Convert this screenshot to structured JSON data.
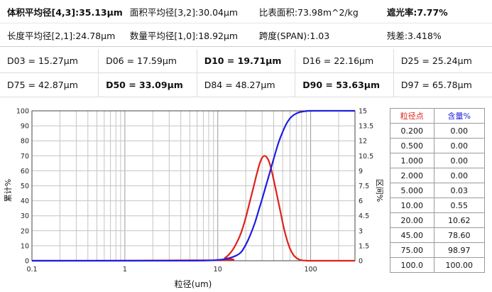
{
  "stats": {
    "row1": [
      {
        "label": "体积平均径[4,3]:35.13μm",
        "bold": true
      },
      {
        "label": "面积平均径[3,2]:30.04μm",
        "bold": false
      },
      {
        "label": "比表面积:73.98m^2/kg",
        "bold": false
      },
      {
        "label": "遮光率:7.77%",
        "bold": true
      }
    ],
    "row2": [
      {
        "label": "长度平均径[2,1]:24.78μm",
        "bold": false
      },
      {
        "label": "数量平均径[1,0]:18.92μm",
        "bold": false
      },
      {
        "label": "跨度(SPAN):1.03",
        "bold": false
      },
      {
        "label": "残差:3.418%",
        "bold": false
      }
    ]
  },
  "d_values": [
    [
      {
        "label": "D03 = 15.27μm",
        "bold": false
      },
      {
        "label": "D06 = 17.59μm",
        "bold": false
      },
      {
        "label": "D10 = 19.71μm",
        "bold": true
      },
      {
        "label": "D16 = 22.16μm",
        "bold": false
      },
      {
        "label": "D25 = 25.24μm",
        "bold": false
      }
    ],
    [
      {
        "label": "D75 = 42.87μm",
        "bold": false
      },
      {
        "label": "D50 = 33.09μm",
        "bold": true
      },
      {
        "label": "D84 = 48.27μm",
        "bold": false
      },
      {
        "label": "D90 = 53.63μm",
        "bold": true
      },
      {
        "label": "D97 = 65.78μm",
        "bold": false
      }
    ]
  ],
  "particle_table": {
    "header": [
      "粒径点",
      "含量%"
    ],
    "rows": [
      [
        "0.200",
        "0.00"
      ],
      [
        "0.500",
        "0.00"
      ],
      [
        "1.000",
        "0.00"
      ],
      [
        "2.000",
        "0.00"
      ],
      [
        "5.000",
        "0.03"
      ],
      [
        "10.00",
        "0.55"
      ],
      [
        "20.00",
        "10.62"
      ],
      [
        "45.00",
        "78.60"
      ],
      [
        "75.00",
        "98.97"
      ],
      [
        "100.0",
        "100.00"
      ]
    ]
  },
  "chart_data": {
    "type": "line",
    "xlabel": "粒径(um)",
    "ylabel_left": "累计%",
    "ylabel_right": "区间%",
    "xscale": "log",
    "xlim": [
      0.1,
      300
    ],
    "ylim_left": [
      0,
      100
    ],
    "ylim_right": [
      0,
      15
    ],
    "xticks": [
      0.1,
      1,
      10,
      100
    ],
    "xtick_labels": [
      "0.1",
      "1",
      "10",
      "100"
    ],
    "yticks_left": [
      "0",
      "10",
      "20",
      "30",
      "40",
      "50",
      "60",
      "70",
      "80",
      "90",
      "100"
    ],
    "yticks_right": [
      "0",
      "1.5",
      "3",
      "4.5",
      "6",
      "7.5",
      "9",
      "10.5",
      "12",
      "13.5",
      "15"
    ],
    "grid": true,
    "series": [
      {
        "axis": "right",
        "color": "#e0201a",
        "x": [
          0.1,
          10,
          12,
          14,
          16,
          18,
          20,
          22,
          24,
          26,
          28,
          30,
          32,
          34,
          36,
          38,
          40,
          44,
          48,
          52,
          56,
          60,
          65,
          70,
          75,
          80,
          90,
          100,
          300
        ],
        "y": [
          0,
          0.05,
          0.3,
          0.9,
          1.8,
          2.9,
          4.3,
          5.8,
          7.2,
          8.5,
          9.6,
          10.3,
          10.5,
          10.3,
          9.8,
          9.0,
          8.1,
          6.3,
          4.6,
          3.1,
          2.0,
          1.2,
          0.6,
          0.3,
          0.12,
          0.05,
          0.01,
          0,
          0
        ]
      },
      {
        "axis": "left",
        "color": "#1e1ee0",
        "x": [
          0.1,
          5,
          10,
          12,
          14,
          16,
          18,
          20,
          22,
          25,
          28,
          30,
          33,
          36,
          40,
          45,
          50,
          55,
          60,
          65,
          70,
          75,
          80,
          90,
          100,
          300
        ],
        "y": [
          0,
          0.03,
          0.55,
          1.2,
          2.2,
          3.6,
          6.0,
          10.62,
          16,
          25,
          35,
          41,
          50,
          58,
          68,
          78.6,
          86,
          91.5,
          95,
          97,
          98.2,
          98.97,
          99.4,
          99.8,
          100,
          100
        ]
      }
    ]
  }
}
